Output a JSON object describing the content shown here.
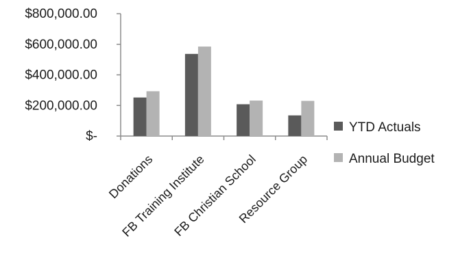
{
  "chart_data": {
    "type": "bar",
    "title": "",
    "xlabel": "",
    "ylabel": "",
    "categories": [
      "Donations",
      "FB Training Institute",
      "FB Christian School",
      "Resource Group"
    ],
    "series": [
      {
        "name": "YTD Actuals",
        "color": "#5a5a5a",
        "values": [
          252000,
          537000,
          208000,
          135000
        ]
      },
      {
        "name": "Annual Budget",
        "color": "#b3b3b3",
        "values": [
          293000,
          585000,
          232000,
          230000
        ]
      }
    ],
    "yticks": [
      {
        "value": 0,
        "label": "$-"
      },
      {
        "value": 200000,
        "label": "$200,000.00"
      },
      {
        "value": 400000,
        "label": "$400,000.00"
      },
      {
        "value": 600000,
        "label": "$600,000.00"
      },
      {
        "value": 800000,
        "label": "$800,000.00"
      }
    ],
    "ylim": [
      0,
      800000
    ],
    "grid": false,
    "legend_position": "right"
  }
}
